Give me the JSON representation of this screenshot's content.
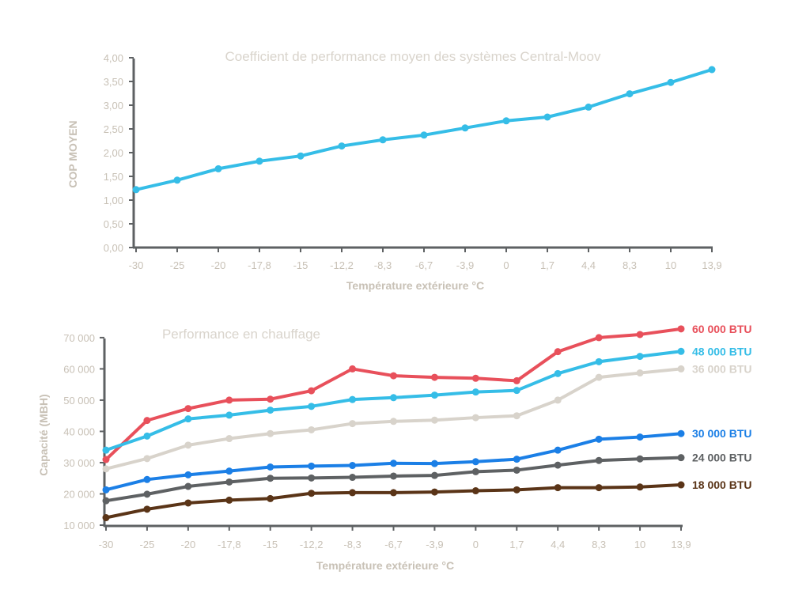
{
  "chart_data": [
    {
      "type": "line",
      "title": "Coefficient de performance moyen des systèmes Central-Moov",
      "xlabel": "Température extérieure °C",
      "ylabel": "COP MOYEN",
      "categories": [
        "-30",
        "-25",
        "-20",
        "-17,8",
        "-15",
        "-12,2",
        "-8,3",
        "-6,7",
        "-3,9",
        "0",
        "1,7",
        "4,4",
        "8,3",
        "10",
        "13,9"
      ],
      "yticks": [
        "0,00",
        "0,50",
        "1,00",
        "1,50",
        "2,00",
        "2,50",
        "3,00",
        "3,50",
        "4,00"
      ],
      "ylim": [
        0,
        4
      ],
      "series": [
        {
          "color": "#35bde7",
          "values": [
            1.22,
            1.42,
            1.66,
            1.82,
            1.93,
            2.14,
            2.27,
            2.37,
            2.52,
            2.67,
            2.75,
            2.96,
            3.24,
            3.48,
            3.75
          ]
        }
      ]
    },
    {
      "type": "line",
      "title": "Performance en chauffage",
      "xlabel": "Température extérieure °C",
      "ylabel": "Capacité (MBH)",
      "categories": [
        "-30",
        "-25",
        "-20",
        "-17,8",
        "-15",
        "-12,2",
        "-8,3",
        "-6,7",
        "-3,9",
        "0",
        "1,7",
        "4,4",
        "8,3",
        "10",
        "13,9"
      ],
      "yticks": [
        "10 000",
        "20 000",
        "30 000",
        "40 000",
        "50 000",
        "60 000",
        "70 000"
      ],
      "ylim": [
        10000,
        72000
      ],
      "series": [
        {
          "name": "60 000 BTU",
          "color": "#e8505b",
          "values": [
            31000,
            43500,
            47300,
            50000,
            50300,
            53000,
            60000,
            57800,
            57300,
            57000,
            56200,
            65500,
            70000,
            71000,
            72800
          ]
        },
        {
          "name": "48 000 BTU",
          "color": "#35bde7",
          "values": [
            34000,
            38500,
            44000,
            45200,
            46800,
            48000,
            50200,
            50800,
            51600,
            52600,
            53100,
            58500,
            62300,
            64000,
            65600
          ]
        },
        {
          "name": "36 000 BTU",
          "color": "#d8d3cb",
          "values": [
            28000,
            31300,
            35600,
            37700,
            39300,
            40500,
            42500,
            43200,
            43600,
            44400,
            45000,
            50000,
            57300,
            58700,
            60000
          ]
        },
        {
          "name": "30 000 BTU",
          "color": "#1b7fe6",
          "values": [
            21300,
            24600,
            26100,
            27300,
            28600,
            28900,
            29100,
            29800,
            29700,
            30300,
            31100,
            34000,
            37500,
            38200,
            39300
          ]
        },
        {
          "name": "24 000 BTU",
          "color": "#5e6163",
          "values": [
            17800,
            19900,
            22400,
            23800,
            25000,
            25100,
            25300,
            25700,
            25900,
            27100,
            27600,
            29200,
            30700,
            31200,
            31600
          ]
        },
        {
          "name": "18 000 BTU",
          "color": "#5a3417",
          "values": [
            12400,
            15100,
            17100,
            18000,
            18500,
            20200,
            20400,
            20400,
            20600,
            21000,
            21300,
            22000,
            22000,
            22200,
            22900
          ]
        }
      ]
    }
  ]
}
